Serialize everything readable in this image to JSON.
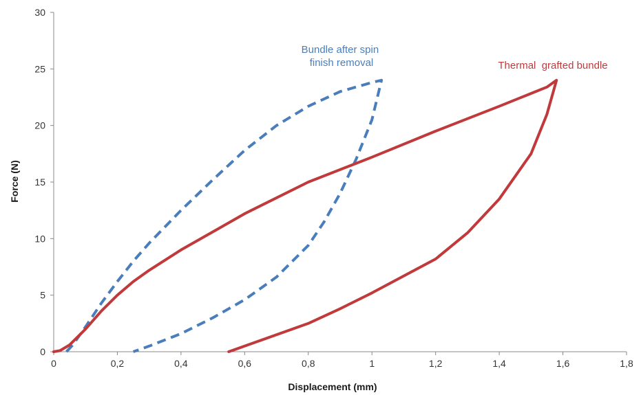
{
  "chart_data": {
    "type": "line",
    "xlabel": "Displacement (mm)",
    "ylabel": "Force (N)",
    "xlim": [
      0,
      1.8
    ],
    "ylim": [
      0,
      30
    ],
    "x_ticks": [
      "0",
      "0,2",
      "0,4",
      "0,6",
      "0,8",
      "1",
      "1,2",
      "1,4",
      "1,6",
      "1,8"
    ],
    "y_ticks": [
      "0",
      "5",
      "10",
      "15",
      "20",
      "25",
      "30"
    ],
    "grid": false,
    "series": [
      {
        "name": "Bundle after spin finish removal",
        "label_lines": [
          "Bundle after spin",
          "finish removal"
        ],
        "color": "#4a7ebb",
        "style": "dashed",
        "points": [
          [
            0.04,
            0
          ],
          [
            0.06,
            0.6
          ],
          [
            0.1,
            2.2
          ],
          [
            0.15,
            4.3
          ],
          [
            0.2,
            6.2
          ],
          [
            0.25,
            8.0
          ],
          [
            0.3,
            9.6
          ],
          [
            0.4,
            12.5
          ],
          [
            0.5,
            15.2
          ],
          [
            0.6,
            17.8
          ],
          [
            0.7,
            20.0
          ],
          [
            0.8,
            21.7
          ],
          [
            0.9,
            23.0
          ],
          [
            1.0,
            23.8
          ],
          [
            1.03,
            24.0
          ],
          [
            1.0,
            20.5
          ],
          [
            0.95,
            17.0
          ],
          [
            0.9,
            14.0
          ],
          [
            0.85,
            11.5
          ],
          [
            0.8,
            9.4
          ],
          [
            0.7,
            6.6
          ],
          [
            0.6,
            4.6
          ],
          [
            0.5,
            3.0
          ],
          [
            0.4,
            1.6
          ],
          [
            0.3,
            0.5
          ],
          [
            0.25,
            0
          ]
        ]
      },
      {
        "name": "Thermal grafted bundle",
        "label_lines": [
          "Thermal  grafted bundle"
        ],
        "color": "#c0393b",
        "style": "solid",
        "points": [
          [
            0,
            0
          ],
          [
            0.02,
            0.1
          ],
          [
            0.05,
            0.6
          ],
          [
            0.1,
            2.0
          ],
          [
            0.15,
            3.6
          ],
          [
            0.2,
            5.0
          ],
          [
            0.25,
            6.2
          ],
          [
            0.3,
            7.2
          ],
          [
            0.4,
            9.0
          ],
          [
            0.5,
            10.6
          ],
          [
            0.6,
            12.2
          ],
          [
            0.8,
            15.0
          ],
          [
            1.0,
            17.2
          ],
          [
            1.2,
            19.5
          ],
          [
            1.4,
            21.7
          ],
          [
            1.55,
            23.4
          ],
          [
            1.58,
            24.0
          ],
          [
            1.55,
            21.0
          ],
          [
            1.5,
            17.5
          ],
          [
            1.4,
            13.5
          ],
          [
            1.3,
            10.5
          ],
          [
            1.2,
            8.2
          ],
          [
            1.0,
            5.2
          ],
          [
            0.9,
            3.8
          ],
          [
            0.8,
            2.5
          ],
          [
            0.7,
            1.5
          ],
          [
            0.6,
            0.5
          ],
          [
            0.55,
            0
          ]
        ]
      }
    ]
  }
}
